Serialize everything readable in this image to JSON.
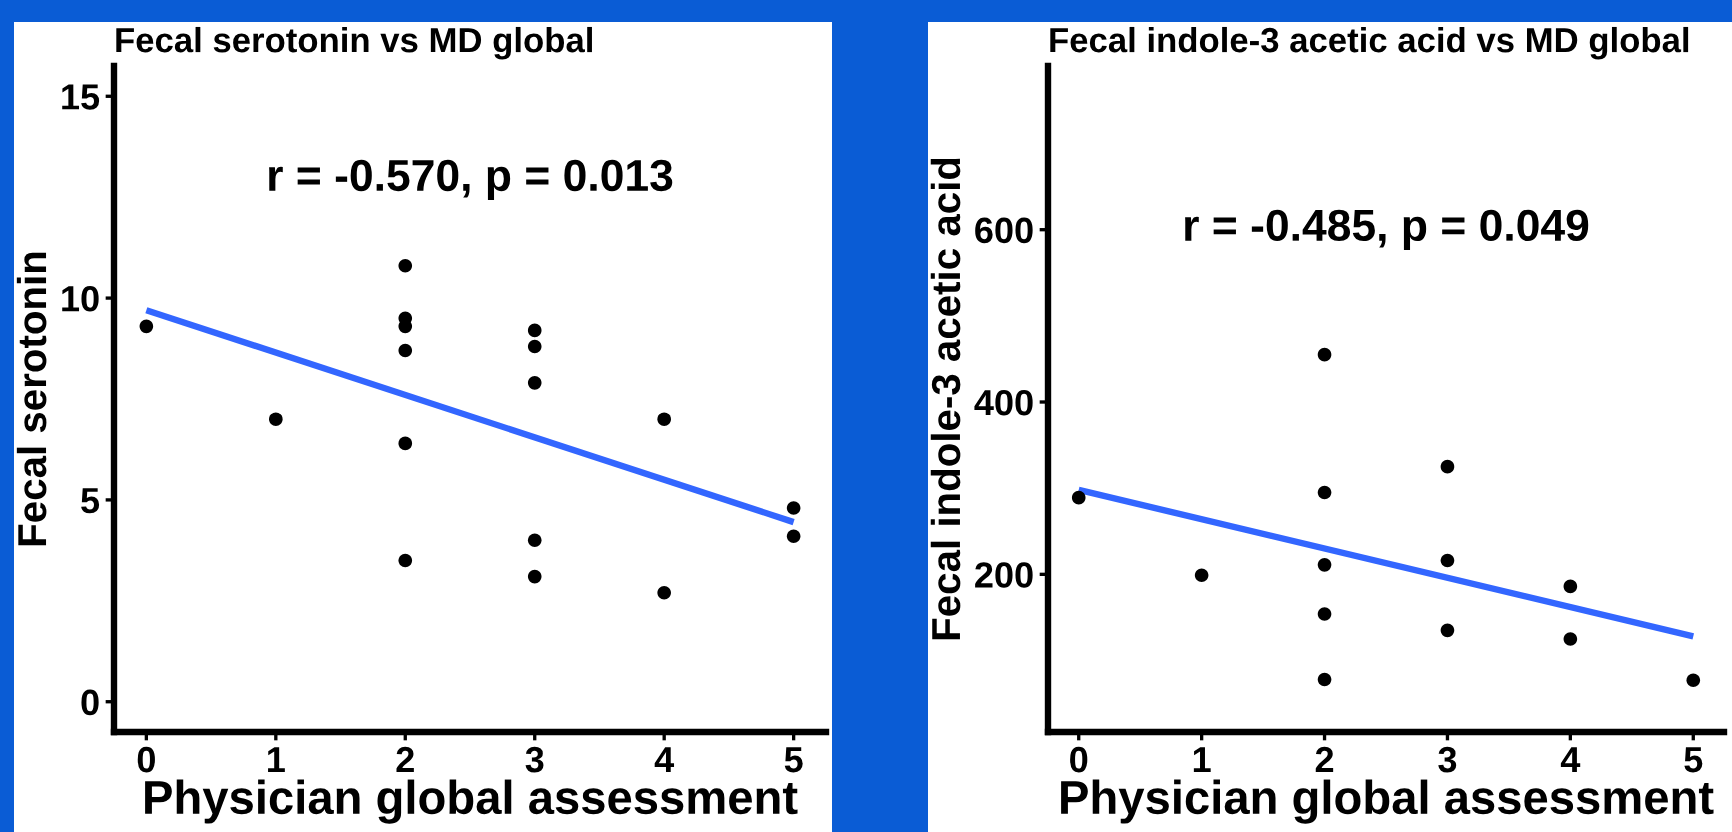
{
  "chart_data": [
    {
      "type": "scatter",
      "title": "Fecal serotonin vs MD global",
      "xlabel": "Physician global assessment",
      "ylabel": "Fecal serotonin",
      "annotations": [
        "r = -0.570, p = 0.013"
      ],
      "series": [
        {
          "marker": "circle",
          "color": "#000000",
          "x": [
            0,
            1,
            2,
            2,
            2,
            2,
            2,
            2,
            3,
            3,
            3,
            3,
            3,
            4,
            4,
            5,
            5
          ],
          "values": [
            9.3,
            7.0,
            10.8,
            9.5,
            9.3,
            8.7,
            6.4,
            3.5,
            9.2,
            8.8,
            7.9,
            4.0,
            3.1,
            7.0,
            2.7,
            4.8,
            4.1
          ]
        },
        {
          "type": "line",
          "color": "#3366ff",
          "x": [
            0,
            5
          ],
          "values": [
            9.7,
            4.45
          ]
        }
      ],
      "xlim": [
        -0.25,
        5.25
      ],
      "xticks": [
        0,
        1,
        2,
        3,
        4,
        5
      ],
      "ylim": [
        -0.75,
        15.75
      ],
      "yticks": [
        0,
        5,
        10,
        15
      ]
    },
    {
      "type": "scatter",
      "title": "Fecal indole-3 acetic acid vs MD global",
      "xlabel": "Physician global assessment",
      "ylabel": "Fecal indole-3 acetic acid",
      "annotations": [
        "r = -0.485, p = 0.049"
      ],
      "series": [
        {
          "marker": "circle",
          "color": "#000000",
          "x": [
            0,
            1,
            2,
            2,
            2,
            2,
            2,
            3,
            3,
            3,
            4,
            4,
            5
          ],
          "values": [
            289,
            199,
            455,
            295,
            211,
            154,
            78,
            325,
            216,
            135,
            186,
            125,
            77
          ]
        },
        {
          "type": "line",
          "color": "#3366ff",
          "x": [
            0,
            5
          ],
          "values": [
            298,
            128
          ]
        }
      ],
      "xlim": [
        -0.25,
        5.25
      ],
      "xticks": [
        0,
        1,
        2,
        3,
        4,
        5
      ],
      "ylim": [
        17,
        790
      ],
      "yticks": [
        200,
        400,
        600
      ]
    }
  ]
}
